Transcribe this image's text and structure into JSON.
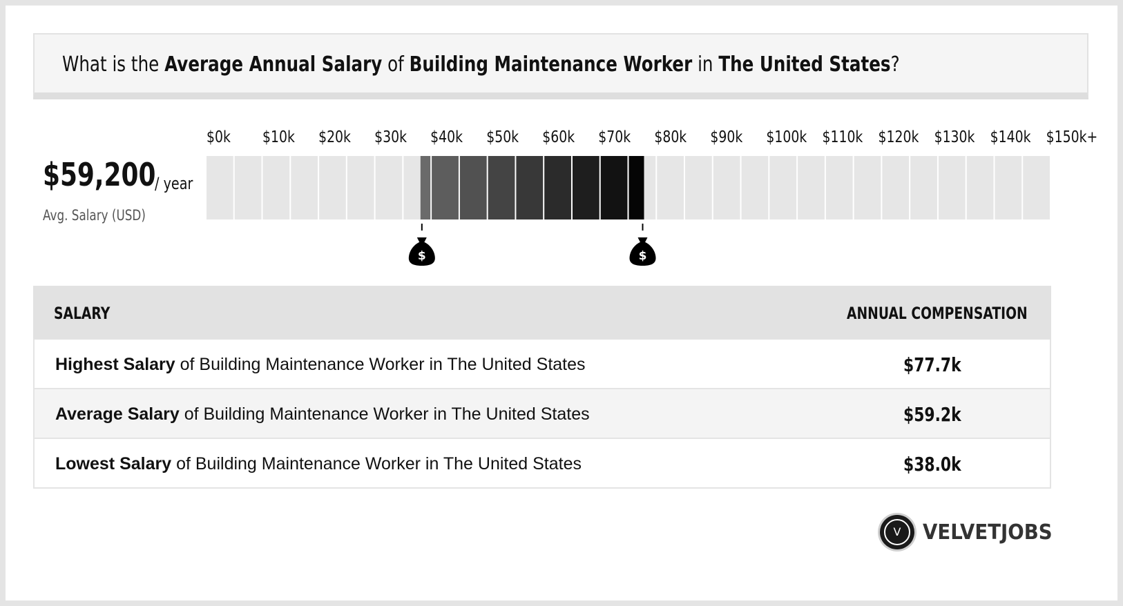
{
  "title": {
    "p1": "What is the ",
    "b1": "Average Annual Salary",
    "p2": " of ",
    "b2": "Building Maintenance Worker",
    "p3": " in ",
    "b3": "The United States",
    "p4": "?"
  },
  "average": {
    "value": "$59,200",
    "unit": "/ year",
    "label": "Avg. Salary (USD)"
  },
  "chart_data": {
    "type": "range-bar",
    "tick_labels": [
      "$0k",
      "$10k",
      "$20k",
      "$30k",
      "$40k",
      "$50k",
      "$60k",
      "$70k",
      "$80k",
      "$90k",
      "$100k",
      "$110k",
      "$120k",
      "$130k",
      "$140k",
      "$150k+"
    ],
    "range_low": 38.0,
    "range_high": 77.7,
    "average": 59.2,
    "unit": "thousand USD",
    "xlim": [
      0,
      150
    ],
    "colors": {
      "empty": "#e6e6e6",
      "range_start": "#6a6a6a",
      "range_end": "#050505",
      "marker": "#000000"
    },
    "marker_icon": "money-bag-icon",
    "marker_symbol": "$"
  },
  "table": {
    "header_left": "SALARY",
    "header_right": "ANNUAL COMPENSATION",
    "rows": [
      {
        "bold": "Highest Salary",
        "rest": " of Building Maintenance Worker in The United States",
        "value": "$77.7k"
      },
      {
        "bold": "Average Salary",
        "rest": " of Building Maintenance Worker in The United States",
        "value": "$59.2k"
      },
      {
        "bold": "Lowest Salary",
        "rest": " of Building Maintenance Worker in The United States",
        "value": "$38.0k"
      }
    ]
  },
  "logo": {
    "letter": "V",
    "text": "VELVETJOBS"
  }
}
